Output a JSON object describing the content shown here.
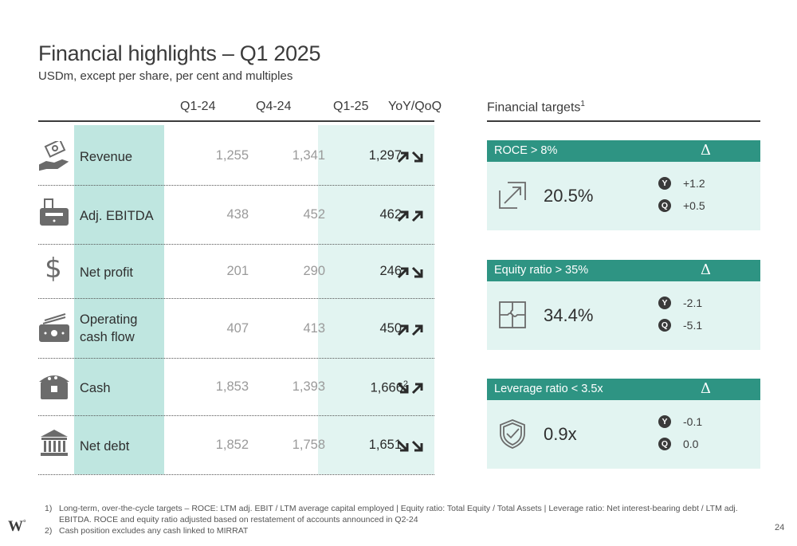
{
  "header": {
    "title": "Financial highlights – Q1 2025",
    "subtitle": "USDm, except per share, per cent and multiples"
  },
  "table": {
    "columns": [
      "Q1-24",
      "Q4-24",
      "Q1-25",
      "YoY/QoQ"
    ],
    "rows": [
      {
        "label": "Revenue",
        "icon": "money-hand-icon",
        "q1_24": "1,255",
        "q4_24": "1,341",
        "q1_25": "1,297",
        "yoy": "up",
        "qoq": "down"
      },
      {
        "label": "Adj. EBITDA",
        "icon": "cash-register-icon",
        "q1_24": "438",
        "q4_24": "452",
        "q1_25": "462",
        "yoy": "up",
        "qoq": "up"
      },
      {
        "label": "Net profit",
        "icon": "dollar-sign-icon",
        "q1_24": "201",
        "q4_24": "290",
        "q1_25": "246",
        "yoy": "up",
        "qoq": "down"
      },
      {
        "label": "Operating cash flow",
        "label_line1": "Operating",
        "label_line2": "cash flow",
        "icon": "banknotes-icon",
        "q1_24": "407",
        "q4_24": "413",
        "q1_25": "450",
        "yoy": "up",
        "qoq": "up"
      },
      {
        "label": "Cash",
        "icon": "treasure-chest-icon",
        "q1_24": "1,853",
        "q4_24": "1,393",
        "q1_25": "1,666",
        "q1_25_sup": "2",
        "yoy": "down",
        "qoq": "up"
      },
      {
        "label": "Net debt",
        "icon": "bank-building-icon",
        "q1_24": "1,852",
        "q4_24": "1,758",
        "q1_25": "1,651",
        "yoy": "down",
        "qoq": "down"
      }
    ]
  },
  "targets": {
    "title": "Financial targets",
    "title_sup": "1",
    "delta_symbol": "Δ",
    "cards": [
      {
        "label": "ROCE > 8%",
        "value": "20.5%",
        "icon": "growth-arrow-icon",
        "y_badge": "Y",
        "y_change": "+1.2",
        "q_badge": "Q",
        "q_change": "+0.5"
      },
      {
        "label": "Equity ratio > 35%",
        "value": "34.4%",
        "icon": "puzzle-icon",
        "y_badge": "Y",
        "y_change": "-2.1",
        "q_badge": "Q",
        "q_change": "-5.1"
      },
      {
        "label": "Leverage ratio < 3.5x",
        "value": "0.9x",
        "icon": "shield-check-icon",
        "y_badge": "Y",
        "y_change": "-0.1",
        "q_badge": "Q",
        "q_change": "0.0"
      }
    ]
  },
  "footnotes": [
    {
      "num": "1)",
      "text": "Long-term, over-the-cycle targets – ROCE: LTM adj. EBIT / LTM average capital employed | Equity ratio: Total Equity / Total Assets | Leverage ratio: Net interest-bearing debt / LTM adj. EBITDA. ROCE and equity ratio adjusted based on restatement of accounts announced in Q2-24"
    },
    {
      "num": "2)",
      "text": "Cash position excludes any cash linked to MIRRAT"
    }
  ],
  "logo": {
    "text": "W",
    "sup": "°"
  },
  "page_number": "24",
  "colors": {
    "accent": "#2e9483",
    "metric_column": "#bfe6e0",
    "highlight_column": "#e2f4f1",
    "text": "#3b3b3b",
    "muted": "#9a9a9a"
  }
}
